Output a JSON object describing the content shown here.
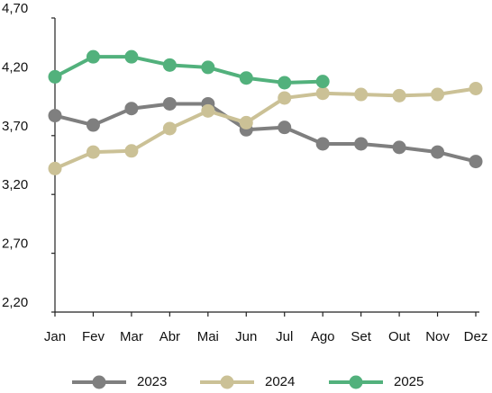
{
  "chart_data": {
    "type": "line",
    "categories": [
      "Jan",
      "Fev",
      "Mar",
      "Abr",
      "Mai",
      "Jun",
      "Jul",
      "Ago",
      "Set",
      "Out",
      "Nov",
      "Dez"
    ],
    "series": [
      {
        "name": "2023",
        "color": "#7f7f7f",
        "values": [
          3.87,
          3.79,
          3.93,
          3.97,
          3.97,
          3.75,
          3.77,
          3.63,
          3.63,
          3.6,
          3.56,
          3.48
        ]
      },
      {
        "name": "2024",
        "color": "#cbc196",
        "values": [
          3.42,
          3.56,
          3.57,
          3.76,
          3.91,
          3.81,
          4.02,
          4.06,
          4.05,
          4.04,
          4.05,
          4.1
        ]
      },
      {
        "name": "2025",
        "color": "#52b17c",
        "values": [
          4.2,
          4.37,
          4.37,
          4.3,
          4.28,
          4.19,
          4.15,
          4.16,
          null,
          null,
          null,
          null
        ]
      }
    ],
    "ylim": [
      2.2,
      4.7
    ],
    "yticks": [
      {
        "value": 2.2,
        "label": "2,20"
      },
      {
        "value": 2.7,
        "label": "2,70"
      },
      {
        "value": 3.2,
        "label": "3,20"
      },
      {
        "value": 3.7,
        "label": "3,70"
      },
      {
        "value": 4.2,
        "label": "4,20"
      },
      {
        "value": 4.7,
        "label": "4,70"
      }
    ],
    "grid": false,
    "legend": "bottom"
  }
}
